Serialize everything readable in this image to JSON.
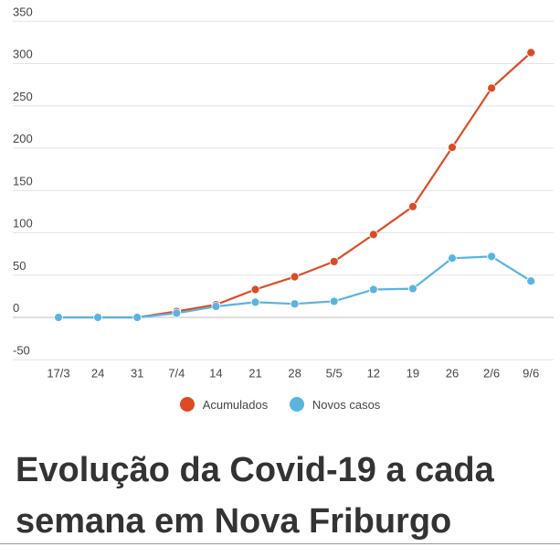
{
  "chart_data": {
    "type": "line",
    "categories": [
      "17/3",
      "24",
      "31",
      "7/4",
      "14",
      "21",
      "28",
      "5/5",
      "12",
      "19",
      "26",
      "2/6",
      "9/6"
    ],
    "series": [
      {
        "name": "Acumulados",
        "color": "#dc4b24",
        "values": [
          0,
          0,
          0,
          7,
          15,
          33,
          48,
          66,
          98,
          131,
          201,
          271,
          313
        ]
      },
      {
        "name": "Novos casos",
        "color": "#5ab4e0",
        "values": [
          0,
          0,
          0,
          5,
          13,
          18,
          16,
          19,
          33,
          34,
          70,
          72,
          43
        ]
      }
    ],
    "yticks": [
      -50,
      0,
      50,
      100,
      150,
      200,
      250,
      300,
      350
    ],
    "ylim": [
      -50,
      350
    ],
    "grid": true,
    "legend_position": "bottom-center"
  },
  "headline": "Evolução da Covid-19 a cada semana em Nova Friburgo"
}
